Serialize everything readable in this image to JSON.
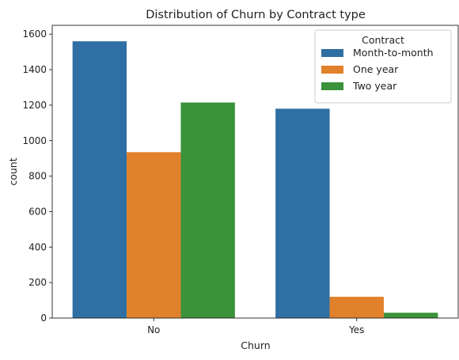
{
  "chart_data": {
    "type": "bar",
    "title": "Distribution of Churn by Contract type",
    "xlabel": "Churn",
    "ylabel": "count",
    "categories": [
      "No",
      "Yes"
    ],
    "series": [
      {
        "name": "Month-to-month",
        "color": "#2f6fa3",
        "values": [
          1560,
          1180
        ]
      },
      {
        "name": "One year",
        "color": "#e1812c",
        "values": [
          935,
          120
        ]
      },
      {
        "name": "Two year",
        "color": "#3a923a",
        "values": [
          1215,
          30
        ]
      }
    ],
    "ylim": [
      0,
      1650
    ],
    "yticks": [
      0,
      200,
      400,
      600,
      800,
      1000,
      1200,
      1400,
      1600
    ],
    "grid": false,
    "legend": {
      "title": "Contract",
      "placement": "top-right"
    }
  }
}
